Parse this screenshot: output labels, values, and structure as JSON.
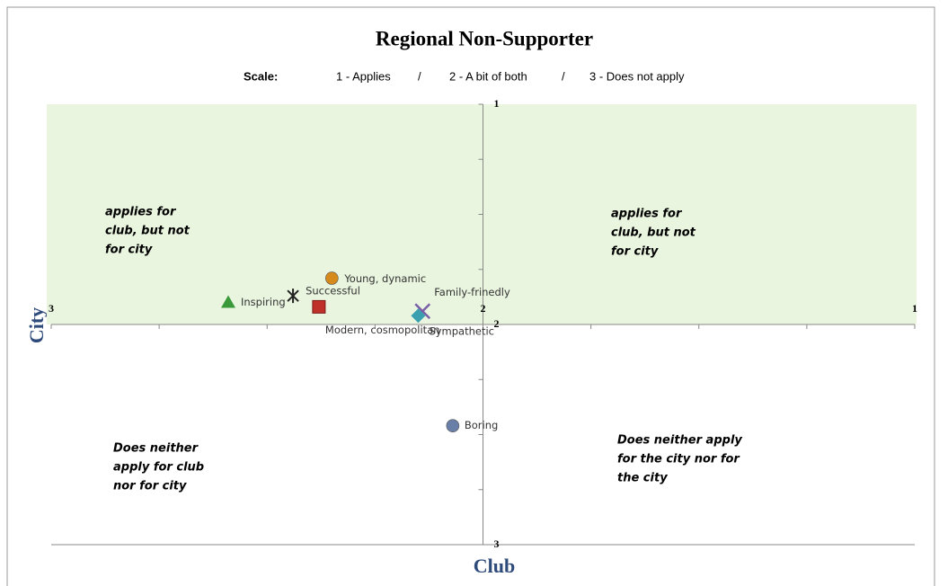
{
  "chart_data": {
    "type": "scatter",
    "title": "Regional Non-Supporter",
    "scale": {
      "label": "Scale:",
      "items": [
        "1 - Applies",
        "2 - A bit of both",
        "3 - Does not apply"
      ],
      "separator": "/"
    },
    "xlabel": "Club",
    "ylabel": "City",
    "xlim": [
      3,
      1
    ],
    "ylim": [
      1,
      3
    ],
    "xticks": [
      3,
      2,
      1
    ],
    "yticks": [
      1,
      2,
      3
    ],
    "xminorticks": [
      2.75,
      2.5,
      2.25,
      1.75,
      1.5,
      1.25
    ],
    "yminorticks": [
      1.25,
      1.5,
      1.75,
      2.25,
      2.5,
      2.75
    ],
    "axis_cross": [
      2,
      2
    ],
    "shaded_region": {
      "ylim": [
        1,
        2
      ],
      "color": "#e9f5df"
    },
    "quadrant_labels": [
      [
        "applies for",
        "club, but not",
        "for city"
      ],
      [
        "applies for",
        "club, but not",
        "for city"
      ],
      [
        "Does neither",
        "apply for club",
        "nor for city"
      ],
      [
        "Does neither apply",
        "for the city nor for",
        "the city"
      ]
    ],
    "series": [
      {
        "name": "Inspiring",
        "marker": "triangle",
        "color": "#3a9a3a",
        "x": 2.59,
        "y": 1.9
      },
      {
        "name": "Successful",
        "marker": "star",
        "color": "#222222",
        "x": 2.44,
        "y": 1.87
      },
      {
        "name": "Young, dynamic",
        "marker": "circle",
        "color": "#d68a1c",
        "x": 2.35,
        "y": 1.79
      },
      {
        "name": "Modern, cosmopolitan",
        "marker": "square",
        "color": "#c0302a",
        "x": 2.38,
        "y": 1.92
      },
      {
        "name": "Family-frinedly",
        "marker": "x",
        "color": "#7a5fa8",
        "x": 2.14,
        "y": 1.94
      },
      {
        "name": "Sympathetic",
        "marker": "diamond",
        "color": "#3aa0b0",
        "x": 2.15,
        "y": 1.96
      },
      {
        "name": "Boring",
        "marker": "circle",
        "color": "#6a7fa8",
        "x": 2.07,
        "y": 2.46
      }
    ]
  }
}
